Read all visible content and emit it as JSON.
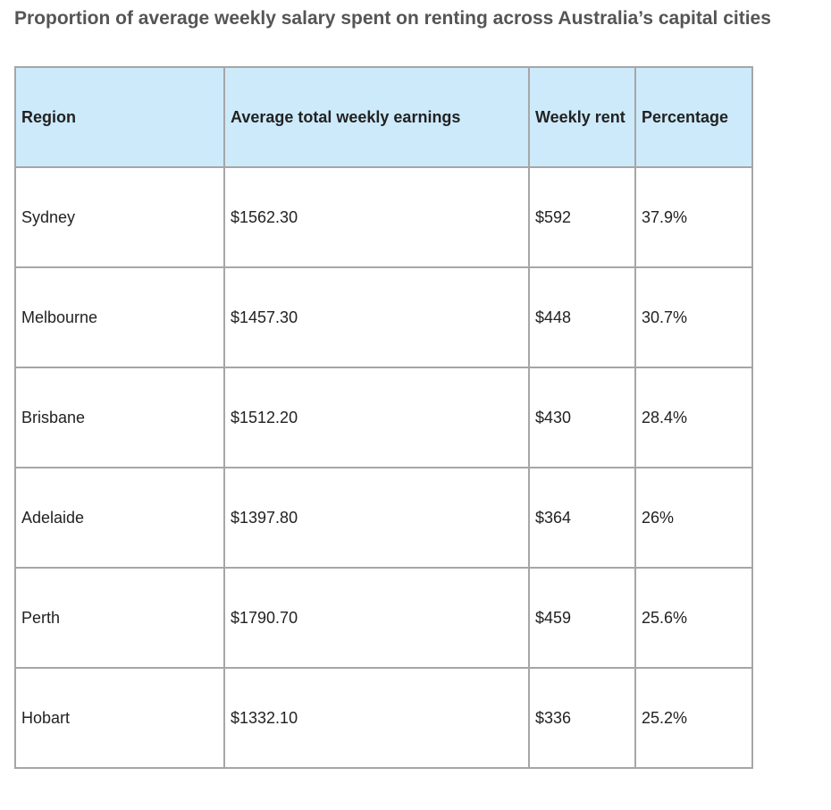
{
  "title": "Proportion of average weekly salary spent on renting across Australia’s capital cities",
  "table": {
    "headers": [
      "Region",
      "Average total weekly earnings",
      "Weekly rent",
      "Percentage"
    ],
    "rows": [
      [
        "Sydney",
        "$1562.30",
        "$592",
        "37.9%"
      ],
      [
        "Melbourne",
        "$1457.30",
        "$448",
        "30.7%"
      ],
      [
        "Brisbane",
        "$1512.20",
        "$430",
        "28.4%"
      ],
      [
        "Adelaide",
        "$1397.80",
        "$364",
        "26%"
      ],
      [
        "Perth",
        "$1790.70",
        "$459",
        "25.6%"
      ],
      [
        "Hobart",
        "$1332.10",
        "$336",
        "25.2%"
      ]
    ]
  },
  "colors": {
    "header_bg": "#cdeafb",
    "border": "#a6a6a6",
    "title": "#555555"
  }
}
